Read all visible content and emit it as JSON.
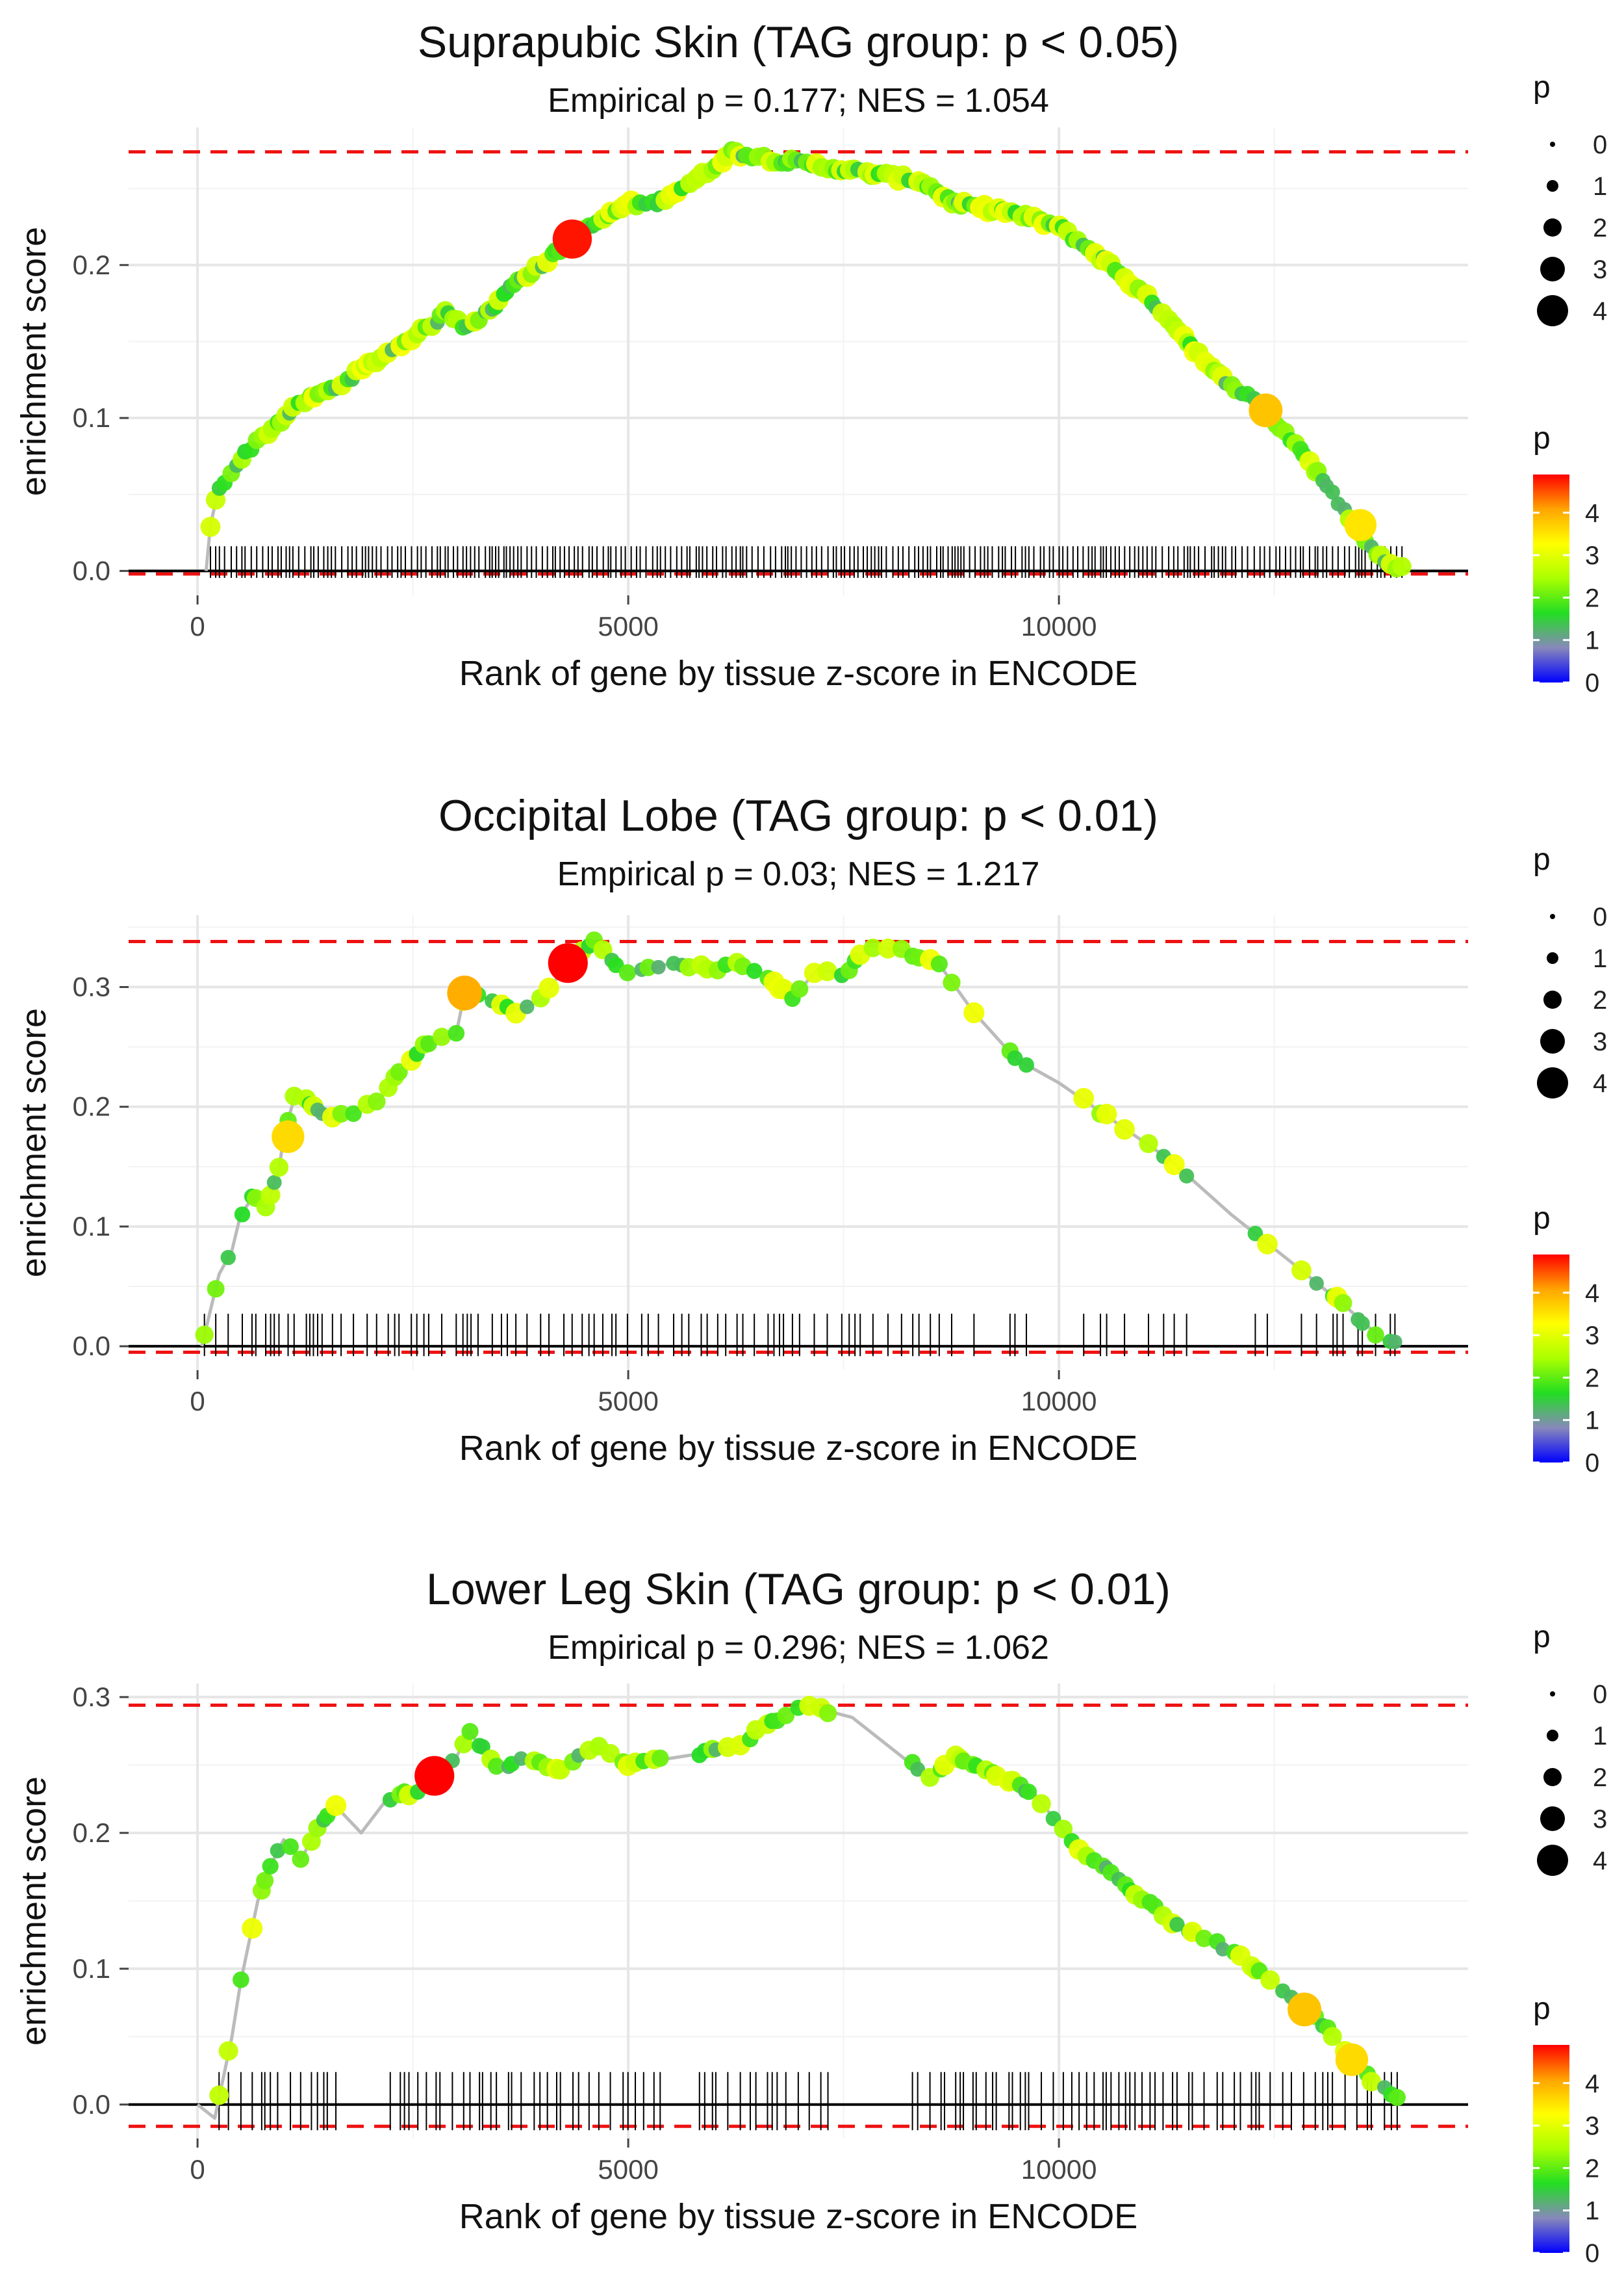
{
  "chart_data": [
    {
      "type": "line",
      "title": "Suprapubic Skin (TAG group: p < 0.05)",
      "subtitle": "Empirical p = 0.177; NES = 1.054",
      "xlabel": "Rank of gene by tissue z-score in ENCODE",
      "ylabel": "enrichment score",
      "xlim": [
        -800,
        14750
      ],
      "ylim": [
        -0.016,
        0.29
      ],
      "xticks": [
        0,
        5000,
        10000
      ],
      "xtick_labels": [
        "0",
        "5000",
        "10000"
      ],
      "yticks": [
        0.0,
        0.1,
        0.2
      ],
      "ytick_labels": [
        "0.0",
        "0.1",
        "0.2"
      ],
      "max_es": 0.274,
      "min_es": -0.002,
      "n_genes": 14000,
      "curve": [
        [
          100,
          0.0
        ],
        [
          150,
          0.03
        ],
        [
          250,
          0.055
        ],
        [
          400,
          0.065
        ],
        [
          600,
          0.08
        ],
        [
          900,
          0.095
        ],
        [
          1200,
          0.11
        ],
        [
          1600,
          0.12
        ],
        [
          2000,
          0.135
        ],
        [
          2400,
          0.15
        ],
        [
          2700,
          0.16
        ],
        [
          2900,
          0.17
        ],
        [
          3100,
          0.16
        ],
        [
          3400,
          0.17
        ],
        [
          3700,
          0.19
        ],
        [
          4000,
          0.2
        ],
        [
          4300,
          0.215
        ],
        [
          4700,
          0.23
        ],
        [
          5000,
          0.24
        ],
        [
          5300,
          0.24
        ],
        [
          5600,
          0.25
        ],
        [
          5900,
          0.26
        ],
        [
          6200,
          0.274
        ],
        [
          6600,
          0.27
        ],
        [
          7200,
          0.265
        ],
        [
          7800,
          0.26
        ],
        [
          8400,
          0.255
        ],
        [
          8800,
          0.24
        ],
        [
          9400,
          0.235
        ],
        [
          10000,
          0.225
        ],
        [
          10600,
          0.2
        ],
        [
          11200,
          0.17
        ],
        [
          11800,
          0.13
        ],
        [
          12300,
          0.11
        ],
        [
          12800,
          0.08
        ],
        [
          13300,
          0.04
        ],
        [
          13700,
          0.01
        ],
        [
          13950,
          0.002
        ]
      ],
      "highlights": [
        {
          "x": 4350,
          "y": 0.217,
          "p": 4.8
        },
        {
          "x": 12400,
          "y": 0.105,
          "p": 3.8
        },
        {
          "x": 13500,
          "y": 0.03,
          "p": 3.5
        }
      ],
      "ticks_density": "dense",
      "size_legend": {
        "title": "p",
        "labels": [
          "0",
          "1",
          "2",
          "3",
          "4"
        ]
      },
      "color_legend": {
        "title": "p",
        "labels": [
          "0",
          "1",
          "2",
          "3",
          "4"
        ]
      }
    },
    {
      "type": "line",
      "title": "Occipital Lobe (TAG group: p < 0.01)",
      "subtitle": "Empirical p = 0.03; NES = 1.217",
      "xlabel": "Rank of gene by tissue z-score in ENCODE",
      "ylabel": "enrichment score",
      "xlim": [
        -800,
        14750
      ],
      "ylim": [
        -0.02,
        0.36
      ],
      "xticks": [
        0,
        5000,
        10000
      ],
      "xtick_labels": [
        "0",
        "5000",
        "10000"
      ],
      "yticks": [
        0.0,
        0.1,
        0.2,
        0.3
      ],
      "ytick_labels": [
        "0.0",
        "0.1",
        "0.2",
        "0.3"
      ],
      "max_es": 0.338,
      "min_es": -0.005,
      "n_genes": 14000,
      "curve": [
        [
          50,
          0.0
        ],
        [
          100,
          0.015
        ],
        [
          250,
          0.06
        ],
        [
          400,
          0.08
        ],
        [
          500,
          0.11
        ],
        [
          650,
          0.125
        ],
        [
          800,
          0.115
        ],
        [
          950,
          0.15
        ],
        [
          1000,
          0.175
        ],
        [
          1150,
          0.215
        ],
        [
          1500,
          0.19
        ],
        [
          1800,
          0.195
        ],
        [
          2100,
          0.205
        ],
        [
          2400,
          0.235
        ],
        [
          2700,
          0.255
        ],
        [
          3000,
          0.26
        ],
        [
          3100,
          0.295
        ],
        [
          3400,
          0.29
        ],
        [
          3700,
          0.28
        ],
        [
          4000,
          0.29
        ],
        [
          4300,
          0.32
        ],
        [
          4600,
          0.338
        ],
        [
          5000,
          0.31
        ],
        [
          5500,
          0.32
        ],
        [
          6000,
          0.315
        ],
        [
          6300,
          0.32
        ],
        [
          6600,
          0.31
        ],
        [
          6900,
          0.29
        ],
        [
          7200,
          0.315
        ],
        [
          7500,
          0.31
        ],
        [
          7800,
          0.335
        ],
        [
          8200,
          0.33
        ],
        [
          8600,
          0.32
        ],
        [
          9000,
          0.28
        ],
        [
          9500,
          0.24
        ],
        [
          10000,
          0.22
        ],
        [
          10600,
          0.19
        ],
        [
          11300,
          0.155
        ],
        [
          12000,
          0.11
        ],
        [
          12700,
          0.07
        ],
        [
          13300,
          0.035
        ],
        [
          13800,
          0.003
        ]
      ],
      "highlights": [
        {
          "x": 4300,
          "y": 0.32,
          "p": 4.9
        },
        {
          "x": 3100,
          "y": 0.295,
          "p": 4.0
        },
        {
          "x": 1050,
          "y": 0.175,
          "p": 3.6
        }
      ],
      "ticks_density": "sparse",
      "size_legend": {
        "title": "p",
        "labels": [
          "0",
          "1",
          "2",
          "3",
          "4"
        ]
      },
      "color_legend": {
        "title": "p",
        "labels": [
          "0",
          "1",
          "2",
          "3",
          "4"
        ]
      }
    },
    {
      "type": "line",
      "title": "Lower Leg Skin (TAG group: p < 0.01)",
      "subtitle": "Empirical p = 0.296; NES = 1.062",
      "xlabel": "Rank of gene by tissue z-score in ENCODE",
      "ylabel": "enrichment score",
      "xlim": [
        -800,
        14750
      ],
      "ylim": [
        -0.025,
        0.31
      ],
      "xticks": [
        0,
        5000,
        10000
      ],
      "xtick_labels": [
        "0",
        "5000",
        "10000"
      ],
      "yticks": [
        0.0,
        0.1,
        0.2,
        0.3
      ],
      "ytick_labels": [
        "0.0",
        "0.1",
        "0.2",
        "0.3"
      ],
      "max_es": 0.294,
      "min_es": -0.016,
      "n_genes": 14000,
      "curve": [
        [
          0,
          0.0
        ],
        [
          200,
          -0.01
        ],
        [
          300,
          0.02
        ],
        [
          400,
          0.05
        ],
        [
          500,
          0.09
        ],
        [
          600,
          0.12
        ],
        [
          700,
          0.15
        ],
        [
          800,
          0.17
        ],
        [
          1000,
          0.195
        ],
        [
          1200,
          0.18
        ],
        [
          1400,
          0.205
        ],
        [
          1600,
          0.22
        ],
        [
          1900,
          0.2
        ],
        [
          2200,
          0.225
        ],
        [
          2500,
          0.23
        ],
        [
          2800,
          0.24
        ],
        [
          3000,
          0.255
        ],
        [
          3150,
          0.275
        ],
        [
          3500,
          0.245
        ],
        [
          3800,
          0.255
        ],
        [
          4200,
          0.245
        ],
        [
          4600,
          0.265
        ],
        [
          5000,
          0.25
        ],
        [
          5500,
          0.255
        ],
        [
          6000,
          0.26
        ],
        [
          6300,
          0.265
        ],
        [
          6600,
          0.28
        ],
        [
          7000,
          0.294
        ],
        [
          7300,
          0.29
        ],
        [
          7600,
          0.285
        ],
        [
          8000,
          0.265
        ],
        [
          8500,
          0.24
        ],
        [
          8800,
          0.255
        ],
        [
          9200,
          0.245
        ],
        [
          9700,
          0.23
        ],
        [
          10200,
          0.19
        ],
        [
          10800,
          0.16
        ],
        [
          11300,
          0.135
        ],
        [
          11800,
          0.12
        ],
        [
          12300,
          0.1
        ],
        [
          12800,
          0.075
        ],
        [
          13200,
          0.05
        ],
        [
          13600,
          0.02
        ],
        [
          13900,
          0.005
        ]
      ],
      "highlights": [
        {
          "x": 2750,
          "y": 0.242,
          "p": 4.9
        },
        {
          "x": 12850,
          "y": 0.07,
          "p": 3.8
        },
        {
          "x": 13400,
          "y": 0.033,
          "p": 3.6
        }
      ],
      "ticks_density": "medium",
      "size_legend": {
        "title": "p",
        "labels": [
          "0",
          "1",
          "2",
          "3",
          "4"
        ]
      },
      "color_legend": {
        "title": "p",
        "labels": [
          "0",
          "1",
          "2",
          "3",
          "4"
        ]
      }
    }
  ],
  "colors": {
    "max_line": "#ee1111",
    "zero_line": "#000000",
    "curve": "#bbbbbb",
    "gradient": [
      "#0000ff",
      "#8888bb",
      "#22dd22",
      "#aaff00",
      "#ffff00",
      "#ffa500",
      "#ff0000"
    ]
  }
}
